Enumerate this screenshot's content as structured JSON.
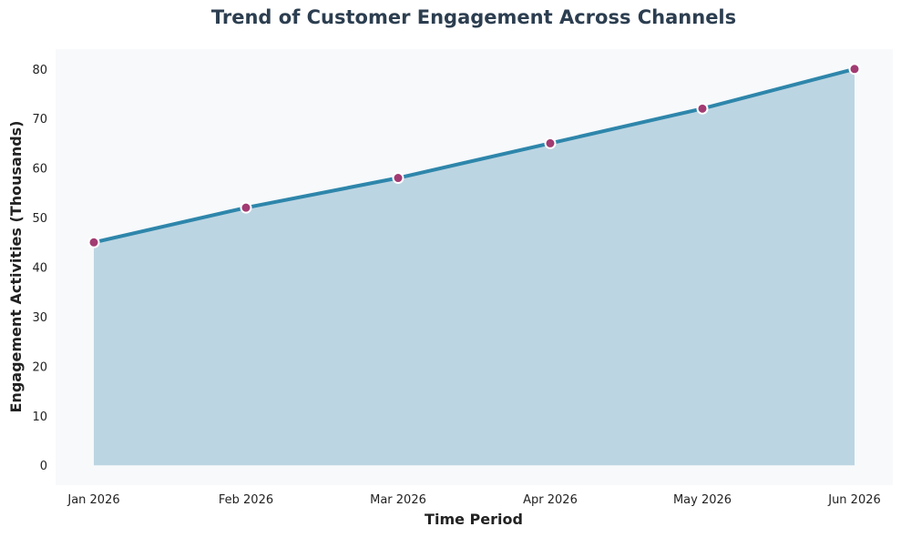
{
  "chart_data": {
    "type": "area",
    "title": "Trend of Customer Engagement Across Channels",
    "xlabel": "Time Period",
    "ylabel": "Engagement Activities (Thousands)",
    "categories": [
      "Jan 2026",
      "Feb 2026",
      "Mar 2026",
      "Apr 2026",
      "May 2026",
      "Jun 2026"
    ],
    "values": [
      45,
      52,
      58,
      65,
      72,
      80
    ],
    "ylim": [
      -4,
      84
    ],
    "yticks": [
      0,
      10,
      20,
      30,
      40,
      50,
      60,
      70,
      80
    ],
    "grid": false,
    "legend": "none",
    "colors": {
      "title": "#2c3e50",
      "plot_background": "#f7f9fb",
      "line": "#2e86ab",
      "area": "#bcd5e2",
      "marker_fill": "#a23b72",
      "marker_edge": "#ffffff"
    }
  }
}
